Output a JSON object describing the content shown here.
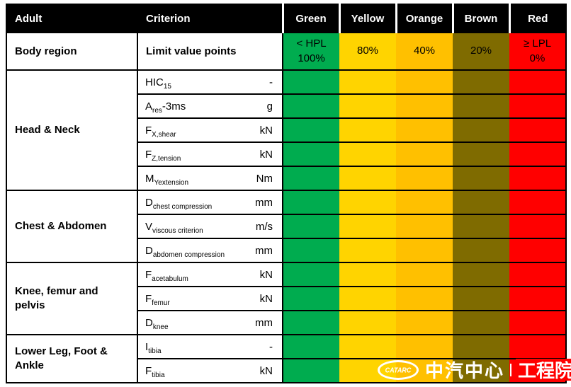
{
  "table": {
    "columns": {
      "adult": "Adult",
      "criterion": "Criterion"
    },
    "levels": [
      {
        "name": "Green",
        "color": "#00AC4F",
        "limit1": "< HPL",
        "limit2": "100%"
      },
      {
        "name": "Yellow",
        "color": "#FFD400",
        "limit1": "80%",
        "limit2": ""
      },
      {
        "name": "Orange",
        "color": "#FFC000",
        "limit1": "40%",
        "limit2": ""
      },
      {
        "name": "Brown",
        "color": "#7F6B00",
        "limit1": "20%",
        "limit2": ""
      },
      {
        "name": "Red",
        "color": "#FF0000",
        "limit1": "≥ LPL",
        "limit2": "0%"
      }
    ],
    "subheader": {
      "body_region": "Body region",
      "limit_value_points": "Limit value points"
    },
    "groups": [
      {
        "region": "Head & Neck",
        "rows": [
          {
            "base": "HIC",
            "sub": "15",
            "suffix": "",
            "unit": "-"
          },
          {
            "base": "A",
            "sub": "res",
            "suffix": "-3ms",
            "unit": "g"
          },
          {
            "base": "F",
            "sub": "X,shear",
            "suffix": "",
            "unit": "kN"
          },
          {
            "base": "F",
            "sub": "Z,tension",
            "suffix": "",
            "unit": "kN"
          },
          {
            "base": "M",
            "sub": "Yextension",
            "suffix": "",
            "unit": "Nm"
          }
        ]
      },
      {
        "region": "Chest & Abdomen",
        "rows": [
          {
            "base": "D",
            "sub": "chest compression",
            "suffix": "",
            "unit": "mm"
          },
          {
            "base": "V",
            "sub": "viscous criterion",
            "suffix": "",
            "unit": "m/s"
          },
          {
            "base": "D",
            "sub": "abdomen compression",
            "suffix": "",
            "unit": "mm"
          }
        ]
      },
      {
        "region": "Knee, femur and pelvis",
        "rows": [
          {
            "base": "F",
            "sub": "acetabulum",
            "suffix": "",
            "unit": "kN"
          },
          {
            "base": "F",
            "sub": "femur",
            "suffix": "",
            "unit": "kN"
          },
          {
            "base": "D",
            "sub": "knee",
            "suffix": "",
            "unit": "mm"
          }
        ]
      },
      {
        "region": "Lower Leg, Foot & Ankle",
        "rows": [
          {
            "base": "I",
            "sub": "tibia",
            "suffix": "",
            "unit": "-"
          },
          {
            "base": "F",
            "sub": "tibia",
            "suffix": "",
            "unit": "kN"
          }
        ]
      }
    ]
  },
  "logo": {
    "mark": "CATARC",
    "brand": "中汽中心",
    "divider": "|",
    "division": "工程院",
    "division_bg": "#FF0000"
  }
}
